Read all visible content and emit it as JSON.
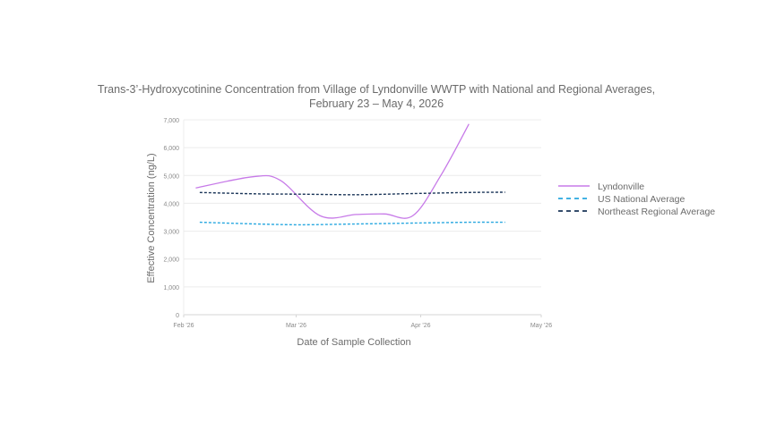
{
  "chart_data": {
    "type": "line",
    "title": "Trans-3’-Hydroxycotinine Concentration from Village of Lyndonville WWTP with National and Regional Averages,",
    "subtitle": "February 23 – May 4, 2026",
    "xlabel": "Date of Sample Collection",
    "ylabel": "Effective Concentration (ng/L)",
    "x_ticks": [
      "Feb '26",
      "Mar '26",
      "Apr '26",
      "May '26"
    ],
    "y_ticks": [
      "0",
      "1,000",
      "2,000",
      "3,000",
      "4,000",
      "5,000",
      "6,000",
      "7,000"
    ],
    "xlim": [
      "2026-02-01",
      "2026-05-01"
    ],
    "ylim": [
      0,
      7000
    ],
    "grid": true,
    "legend_position": "right",
    "series": [
      {
        "name": "Lyndonville",
        "color": "#c77ae8",
        "style": "solid",
        "x": [
          "2026-02-04",
          "2026-02-18",
          "2026-02-25",
          "2026-03-07",
          "2026-03-16",
          "2026-03-23",
          "2026-03-30",
          "2026-04-06",
          "2026-04-13"
        ],
        "y": [
          4550,
          4950,
          4830,
          3550,
          3600,
          3620,
          3550,
          5000,
          6850
        ]
      },
      {
        "name": "US National Average",
        "color": "#29a8e0",
        "style": "dashed",
        "x": [
          "2026-02-05",
          "2026-02-19",
          "2026-03-02",
          "2026-03-16",
          "2026-03-30",
          "2026-04-13",
          "2026-04-22"
        ],
        "y": [
          3320,
          3260,
          3230,
          3260,
          3290,
          3320,
          3320
        ]
      },
      {
        "name": "Northeast Regional Average",
        "color": "#1a3558",
        "style": "dashed",
        "x": [
          "2026-02-05",
          "2026-02-19",
          "2026-03-02",
          "2026-03-16",
          "2026-03-30",
          "2026-04-13",
          "2026-04-22"
        ],
        "y": [
          4390,
          4340,
          4330,
          4310,
          4350,
          4390,
          4400
        ]
      }
    ]
  }
}
